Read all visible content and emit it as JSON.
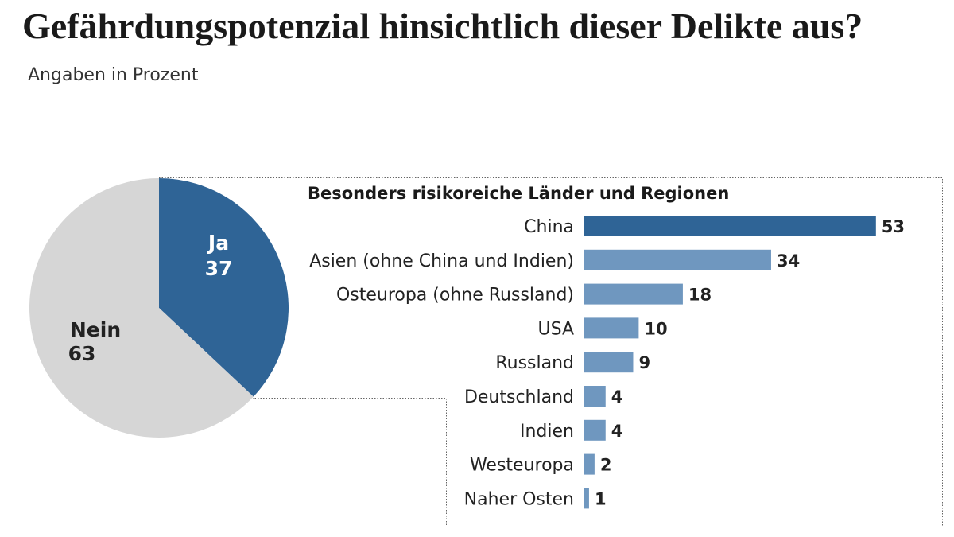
{
  "chart_data": [
    {
      "type": "pie",
      "title": "Gefährdungspotenzial hinsichtlich dieser Delikte aus?",
      "subtitle": "Angaben in Prozent",
      "categories": [
        "Ja",
        "Nein"
      ],
      "values": [
        37,
        63
      ],
      "colors": [
        "#2f6496",
        "#d6d6d6"
      ]
    },
    {
      "type": "bar",
      "title": "Besonders risikoreiche Länder und Regionen",
      "categories": [
        "China",
        "Asien (ohne China und Indien)",
        "Osteuropa (ohne Russland)",
        "USA",
        "Russland",
        "Deutschland",
        "Indien",
        "Westeuropa",
        "Naher Osten"
      ],
      "values": [
        53,
        34,
        18,
        10,
        9,
        4,
        4,
        2,
        1
      ],
      "colors": [
        "#2f6496",
        "#6f97bf",
        "#6f97bf",
        "#6f97bf",
        "#6f97bf",
        "#6f97bf",
        "#6f97bf",
        "#6f97bf",
        "#6f97bf"
      ]
    }
  ]
}
